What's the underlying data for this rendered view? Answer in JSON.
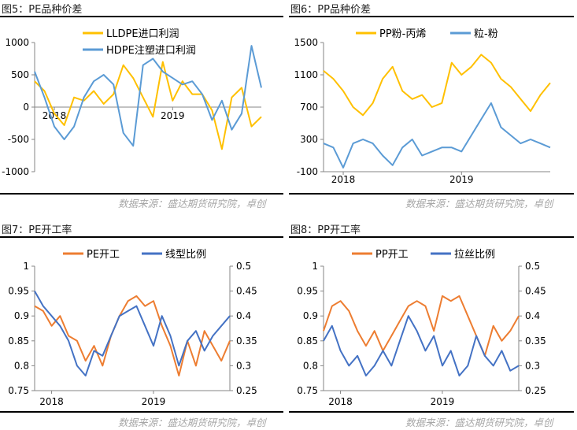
{
  "charts": [
    {
      "title": "图5：PE品种价差",
      "source": "数据来源：盛达期货研究院，卓创",
      "chart_data": {
        "type": "line",
        "title": "",
        "xlabel": "",
        "ylabel": "",
        "ylim": [
          -1000,
          1000
        ],
        "y_ticks": [
          1000,
          500,
          0,
          -500,
          -1000
        ],
        "x_ticks": [
          "2018",
          "2019"
        ],
        "legend_position": "top",
        "grid": false,
        "series": [
          {
            "name": "LLDPE进口利润",
            "color": "#FFC000",
            "x": [
              "2017-11",
              "2017-12",
              "2018-01",
              "2018-02",
              "2018-03",
              "2018-04",
              "2018-05",
              "2018-06",
              "2018-07",
              "2018-08",
              "2018-09",
              "2018-10",
              "2018-11",
              "2018-12",
              "2019-01",
              "2019-02",
              "2019-03",
              "2019-04",
              "2019-05",
              "2019-06",
              "2019-07",
              "2019-08",
              "2019-09",
              "2019-10"
            ],
            "values": [
              400,
              250,
              -100,
              -280,
              150,
              100,
              250,
              50,
              200,
              650,
              450,
              150,
              -150,
              700,
              100,
              400,
              200,
              200,
              -50,
              -650,
              150,
              300,
              -300,
              -150
            ]
          },
          {
            "name": "HDPE注塑进口利润",
            "color": "#5B9BD5",
            "x": [
              "2017-11",
              "2017-12",
              "2018-01",
              "2018-02",
              "2018-03",
              "2018-04",
              "2018-05",
              "2018-06",
              "2018-07",
              "2018-08",
              "2018-09",
              "2018-10",
              "2018-11",
              "2018-12",
              "2019-01",
              "2019-02",
              "2019-03",
              "2019-04",
              "2019-05",
              "2019-06",
              "2019-07",
              "2019-08",
              "2019-09",
              "2019-10"
            ],
            "values": [
              550,
              150,
              -300,
              -500,
              -300,
              150,
              400,
              500,
              350,
              -400,
              -600,
              650,
              750,
              550,
              450,
              350,
              400,
              200,
              -200,
              100,
              -350,
              -100,
              950,
              300
            ]
          }
        ]
      }
    },
    {
      "title": "图6：PP品种价差",
      "source": "数据来源：盛达期货研究院，卓创",
      "chart_data": {
        "type": "line",
        "title": "",
        "xlabel": "",
        "ylabel": "",
        "ylim": [
          -100,
          1500
        ],
        "y_ticks": [
          1500,
          1100,
          700,
          300,
          -100
        ],
        "x_ticks": [
          "2018",
          "2019"
        ],
        "legend_position": "top",
        "grid": false,
        "series": [
          {
            "name": "PP粉-丙烯",
            "color": "#FFC000",
            "x": [
              "2017-11",
              "2017-12",
              "2018-01",
              "2018-02",
              "2018-03",
              "2018-04",
              "2018-05",
              "2018-06",
              "2018-07",
              "2018-08",
              "2018-09",
              "2018-10",
              "2018-11",
              "2018-12",
              "2019-01",
              "2019-02",
              "2019-03",
              "2019-04",
              "2019-05",
              "2019-06",
              "2019-07",
              "2019-08",
              "2019-09",
              "2019-10"
            ],
            "values": [
              1150,
              1050,
              900,
              700,
              600,
              750,
              1050,
              1200,
              900,
              800,
              850,
              700,
              750,
              1250,
              1100,
              1200,
              1350,
              1250,
              1050,
              950,
              800,
              650,
              850,
              1000
            ]
          },
          {
            "name": "粒-粉",
            "color": "#5B9BD5",
            "x": [
              "2017-11",
              "2017-12",
              "2018-01",
              "2018-02",
              "2018-03",
              "2018-04",
              "2018-05",
              "2018-06",
              "2018-07",
              "2018-08",
              "2018-09",
              "2018-10",
              "2018-11",
              "2018-12",
              "2019-01",
              "2019-02",
              "2019-03",
              "2019-04",
              "2019-05",
              "2019-06",
              "2019-07",
              "2019-08",
              "2019-09",
              "2019-10"
            ],
            "values": [
              250,
              200,
              -50,
              250,
              300,
              250,
              100,
              -20,
              200,
              300,
              100,
              150,
              200,
              200,
              150,
              350,
              550,
              750,
              450,
              350,
              250,
              300,
              250,
              200
            ]
          }
        ]
      }
    },
    {
      "title": "图7：PE开工率",
      "source": "数据来源：盛达期货研究院，卓创",
      "chart_data": {
        "type": "line",
        "title": "",
        "xlabel": "",
        "ylabel": "",
        "ylim": [
          0.75,
          1
        ],
        "y_ticks": [
          1,
          0.95,
          0.9,
          0.85,
          0.8,
          0.75
        ],
        "y2lim": [
          0.25,
          0.5
        ],
        "y2_ticks": [
          0.5,
          0.45,
          0.4,
          0.35,
          0.3,
          0.25
        ],
        "x_ticks": [
          "2018",
          "2019"
        ],
        "legend_position": "top",
        "grid": false,
        "series": [
          {
            "name": "PE开工",
            "color": "#ED7D31",
            "axis": "left",
            "x": [
              "2017-11",
              "2017-12",
              "2018-01",
              "2018-02",
              "2018-03",
              "2018-04",
              "2018-05",
              "2018-06",
              "2018-07",
              "2018-08",
              "2018-09",
              "2018-10",
              "2018-11",
              "2018-12",
              "2019-01",
              "2019-02",
              "2019-03",
              "2019-04",
              "2019-05",
              "2019-06",
              "2019-07",
              "2019-08",
              "2019-09",
              "2019-10"
            ],
            "values": [
              0.92,
              0.91,
              0.88,
              0.9,
              0.86,
              0.85,
              0.81,
              0.84,
              0.8,
              0.86,
              0.9,
              0.93,
              0.94,
              0.92,
              0.93,
              0.88,
              0.84,
              0.78,
              0.85,
              0.8,
              0.87,
              0.84,
              0.81,
              0.85
            ]
          },
          {
            "name": "线型比例",
            "color": "#4472C4",
            "axis": "right",
            "x": [
              "2017-11",
              "2017-12",
              "2018-01",
              "2018-02",
              "2018-03",
              "2018-04",
              "2018-05",
              "2018-06",
              "2018-07",
              "2018-08",
              "2018-09",
              "2018-10",
              "2018-11",
              "2018-12",
              "2019-01",
              "2019-02",
              "2019-03",
              "2019-04",
              "2019-05",
              "2019-06",
              "2019-07",
              "2019-08",
              "2019-09",
              "2019-10"
            ],
            "values": [
              0.45,
              0.42,
              0.4,
              0.38,
              0.35,
              0.3,
              0.28,
              0.33,
              0.32,
              0.36,
              0.4,
              0.41,
              0.42,
              0.38,
              0.34,
              0.4,
              0.36,
              0.3,
              0.35,
              0.37,
              0.33,
              0.36,
              0.38,
              0.4
            ]
          }
        ]
      }
    },
    {
      "title": "图8：PP开工率",
      "source": "数据来源：盛达期货研究院，卓创",
      "chart_data": {
        "type": "line",
        "title": "",
        "xlabel": "",
        "ylabel": "",
        "ylim": [
          0.75,
          1
        ],
        "y_ticks": [
          1,
          0.95,
          0.9,
          0.85,
          0.8,
          0.75
        ],
        "y2lim": [
          0.25,
          0.5
        ],
        "y2_ticks": [
          0.5,
          0.45,
          0.4,
          0.35,
          0.3,
          0.25
        ],
        "x_ticks": [
          "2018",
          "2019"
        ],
        "legend_position": "top",
        "grid": false,
        "series": [
          {
            "name": "PP开工",
            "color": "#ED7D31",
            "axis": "left",
            "x": [
              "2017-11",
              "2017-12",
              "2018-01",
              "2018-02",
              "2018-03",
              "2018-04",
              "2018-05",
              "2018-06",
              "2018-07",
              "2018-08",
              "2018-09",
              "2018-10",
              "2018-11",
              "2018-12",
              "2019-01",
              "2019-02",
              "2019-03",
              "2019-04",
              "2019-05",
              "2019-06",
              "2019-07",
              "2019-08",
              "2019-09",
              "2019-10"
            ],
            "values": [
              0.87,
              0.92,
              0.93,
              0.91,
              0.87,
              0.84,
              0.87,
              0.83,
              0.86,
              0.89,
              0.92,
              0.93,
              0.92,
              0.87,
              0.94,
              0.93,
              0.94,
              0.9,
              0.86,
              0.82,
              0.88,
              0.85,
              0.87,
              0.9
            ]
          },
          {
            "name": "拉丝比例",
            "color": "#4472C4",
            "axis": "right",
            "x": [
              "2017-11",
              "2017-12",
              "2018-01",
              "2018-02",
              "2018-03",
              "2018-04",
              "2018-05",
              "2018-06",
              "2018-07",
              "2018-08",
              "2018-09",
              "2018-10",
              "2018-11",
              "2018-12",
              "2019-01",
              "2019-02",
              "2019-03",
              "2019-04",
              "2019-05",
              "2019-06",
              "2019-07",
              "2019-08",
              "2019-09",
              "2019-10"
            ],
            "values": [
              0.35,
              0.38,
              0.33,
              0.3,
              0.32,
              0.28,
              0.3,
              0.33,
              0.3,
              0.35,
              0.4,
              0.37,
              0.33,
              0.36,
              0.3,
              0.33,
              0.28,
              0.3,
              0.36,
              0.32,
              0.3,
              0.33,
              0.29,
              0.3
            ]
          }
        ]
      }
    }
  ]
}
